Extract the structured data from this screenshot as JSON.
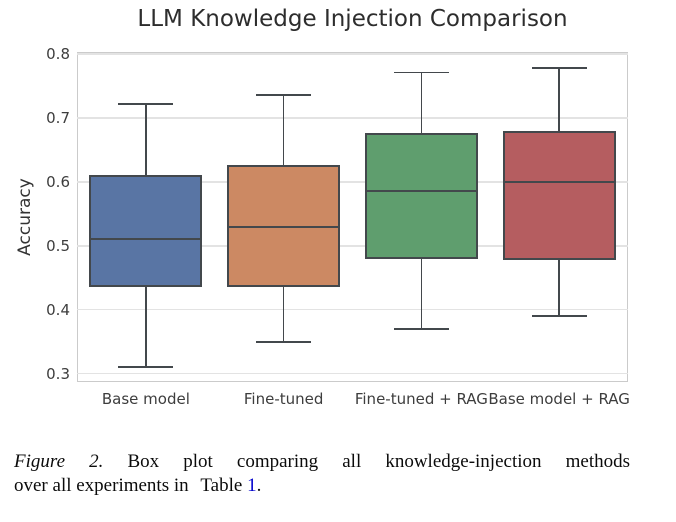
{
  "chart_data": {
    "type": "box",
    "title": "LLM Knowledge Injection Comparison",
    "ylabel": "Accuracy",
    "xlabel": "",
    "ylim": [
      0.287,
      0.803
    ],
    "yticks": [
      0.3,
      0.4,
      0.5,
      0.6,
      0.7,
      0.8
    ],
    "grid": true,
    "legend": "none",
    "categories": [
      "Base model",
      "Fine-tuned",
      "Fine-tuned + RAG",
      "Base model + RAG"
    ],
    "boxes": [
      {
        "label": "Base model",
        "whisker_low": 0.31,
        "q1": 0.435,
        "median": 0.51,
        "q3": 0.61,
        "whisker_high": 0.722,
        "color": "#5975A4"
      },
      {
        "label": "Fine-tuned",
        "whisker_low": 0.35,
        "q1": 0.435,
        "median": 0.53,
        "q3": 0.627,
        "whisker_high": 0.736,
        "color": "#CC8963"
      },
      {
        "label": "Fine-tuned + RAG",
        "whisker_low": 0.37,
        "q1": 0.48,
        "median": 0.586,
        "q3": 0.676,
        "whisker_high": 0.771,
        "color": "#5F9E6E"
      },
      {
        "label": "Base model + RAG",
        "whisker_low": 0.39,
        "q1": 0.477,
        "median": 0.6,
        "q3": 0.679,
        "whisker_high": 0.778,
        "color": "#B55D60"
      }
    ],
    "line_color": "#43484C",
    "grid_color": "#E3E3E3"
  },
  "caption": {
    "figure_label": "Figure 2.",
    "line1_rest": "Box plot comparing all knowledge-injection methods",
    "line2_prefix": "over all experiments in",
    "table_word": "Table",
    "table_number": "1",
    "period": ".",
    "link_color": "#0000CC"
  }
}
